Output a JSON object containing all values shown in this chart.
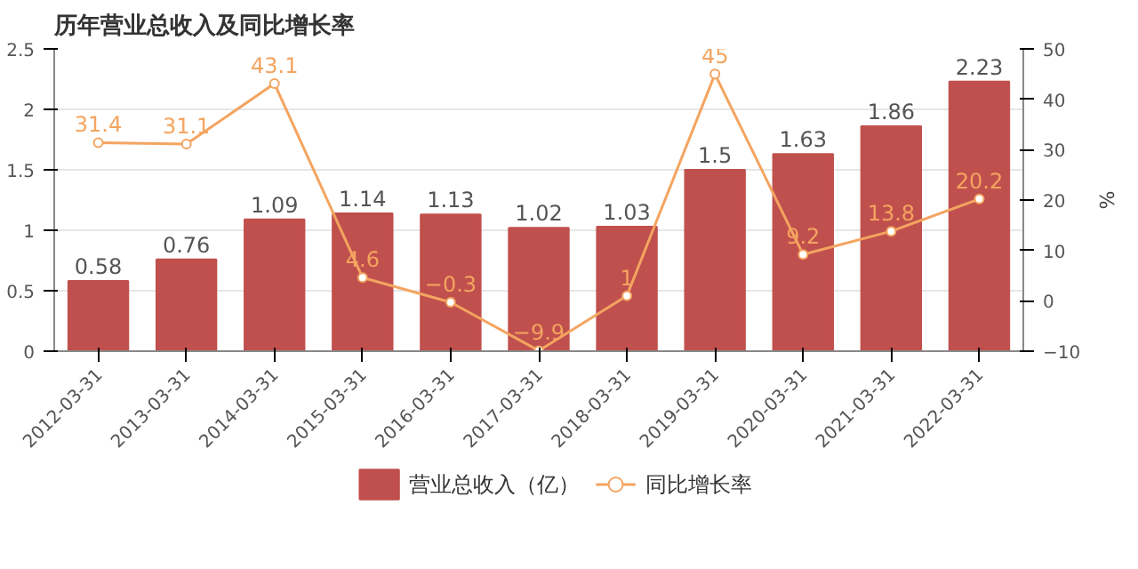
{
  "chart_data": {
    "type": "bar",
    "title": "历年营业总收入及同比增长率",
    "categories": [
      "2012-03-31",
      "2013-03-31",
      "2014-03-31",
      "2015-03-31",
      "2016-03-31",
      "2017-03-31",
      "2018-03-31",
      "2019-03-31",
      "2020-03-31",
      "2021-03-31",
      "2022-03-31"
    ],
    "series": [
      {
        "name": "营业总收入（亿）",
        "color": "#c0504d",
        "values": [
          0.58,
          0.76,
          1.09,
          1.14,
          1.13,
          1.02,
          1.03,
          1.5,
          1.63,
          1.86,
          2.23
        ]
      },
      {
        "name": "同比增长率",
        "type": "line",
        "axis": "y2",
        "color": "#f4a460",
        "values": [
          31.4,
          31.1,
          43.1,
          4.6,
          -0.3,
          -9.9,
          1,
          45,
          9.2,
          13.8,
          20.2
        ]
      }
    ],
    "ylim": [
      0,
      2.5
    ],
    "yticks": [
      0,
      0.5,
      1,
      1.5,
      2,
      2.5
    ],
    "y2lim": [
      -10,
      50
    ],
    "y2ticks": [
      -10,
      0,
      10,
      20,
      30,
      40,
      50
    ],
    "y2label": "%",
    "grid": "y",
    "legend": "bottom",
    "marker": "circle",
    "data_labels": true
  }
}
